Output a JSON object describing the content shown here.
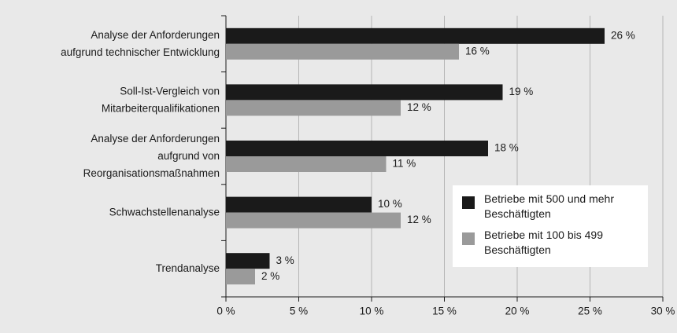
{
  "chart_data": {
    "type": "barh",
    "categories": [
      [
        "Analyse der Anforderungen",
        "aufgrund technischer Entwicklung"
      ],
      [
        "Soll-Ist-Vergleich von",
        "Mitarbeiterqualifikationen"
      ],
      [
        "Analyse der Anforderungen",
        "aufgrund von",
        "Reorganisationsmaßnahmen"
      ],
      [
        "Schwachstellenanalyse"
      ],
      [
        "Trendanalyse"
      ]
    ],
    "series": [
      {
        "name": "Betriebe mit 500 und mehr Beschäftigten",
        "color": "#1a1a1a",
        "values": [
          26,
          19,
          18,
          10,
          3
        ],
        "value_labels": [
          "26 %",
          "19 %",
          "18 %",
          "10 %",
          "3 %"
        ]
      },
      {
        "name": "Betriebe mit 100 bis 499 Beschäftigten",
        "color": "#9a9a9a",
        "values": [
          16,
          12,
          11,
          12,
          2
        ],
        "value_labels": [
          "16 %",
          "12 %",
          "11 %",
          "12 %",
          "2 %"
        ]
      }
    ],
    "xlim": [
      0,
      30
    ],
    "xticks": [
      {
        "value": 0,
        "label": "0 %"
      },
      {
        "value": 5,
        "label": "5 %"
      },
      {
        "value": 10,
        "label": "10 %"
      },
      {
        "value": 15,
        "label": "15 %"
      },
      {
        "value": 20,
        "label": "20 %"
      },
      {
        "value": 25,
        "label": "25 %"
      },
      {
        "value": 30,
        "label": "30 %"
      }
    ],
    "grid": true,
    "legend": "lower right"
  }
}
